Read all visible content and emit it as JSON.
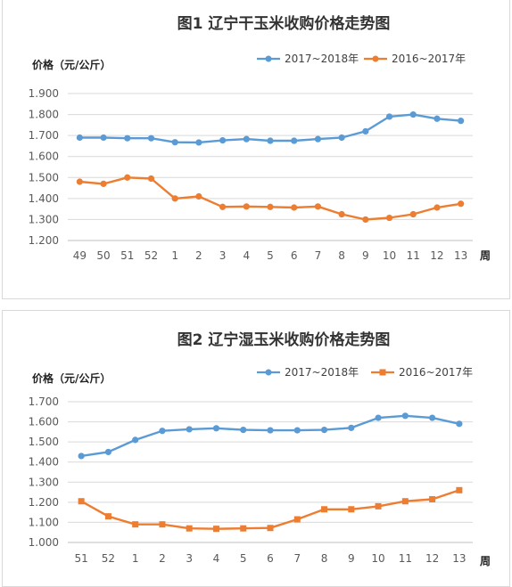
{
  "chart_data": [
    {
      "type": "line",
      "title": "图1 辽宁干玉米收购价格走势图",
      "ylabel": "价格（元/公斤）",
      "xlabel": "周",
      "categories": [
        "49",
        "50",
        "51",
        "52",
        "1",
        "2",
        "3",
        "4",
        "5",
        "6",
        "7",
        "8",
        "9",
        "10",
        "11",
        "12",
        "13"
      ],
      "ylim": [
        1.2,
        1.9
      ],
      "yticks": [
        "1.200",
        "1.300",
        "1.400",
        "1.500",
        "1.600",
        "1.700",
        "1.800",
        "1.900"
      ],
      "grid": true,
      "legend_position": "top-right",
      "series": [
        {
          "name": "2017~2018年",
          "color": "#5b9bd5",
          "marker": "circle",
          "values": [
            1.69,
            1.69,
            1.687,
            1.687,
            1.668,
            1.667,
            1.677,
            1.683,
            1.675,
            1.675,
            1.683,
            1.69,
            1.72,
            1.79,
            1.8,
            1.78,
            1.77
          ]
        },
        {
          "name": "2016~2017年",
          "color": "#ed7d31",
          "marker": "circle",
          "values": [
            1.48,
            1.47,
            1.5,
            1.495,
            1.4,
            1.41,
            1.36,
            1.362,
            1.36,
            1.357,
            1.362,
            1.325,
            1.3,
            1.308,
            1.325,
            1.357,
            1.375
          ]
        }
      ]
    },
    {
      "type": "line",
      "title": "图2 辽宁湿玉米收购价格走势图",
      "ylabel": "价格（元/公斤）",
      "xlabel": "周",
      "categories": [
        "51",
        "52",
        "1",
        "2",
        "3",
        "4",
        "5",
        "6",
        "7",
        "8",
        "9",
        "10",
        "11",
        "12",
        "13"
      ],
      "ylim": [
        1.0,
        1.7
      ],
      "yticks": [
        "1.000",
        "1.100",
        "1.200",
        "1.300",
        "1.400",
        "1.500",
        "1.600",
        "1.700"
      ],
      "grid": true,
      "legend_position": "top-right",
      "series": [
        {
          "name": "2017~2018年",
          "color": "#5b9bd5",
          "marker": "circle",
          "values": [
            1.43,
            1.45,
            1.51,
            1.555,
            1.563,
            1.568,
            1.56,
            1.558,
            1.558,
            1.56,
            1.57,
            1.62,
            1.63,
            1.62,
            1.59
          ]
        },
        {
          "name": "2016~2017年",
          "color": "#ed7d31",
          "marker": "square",
          "values": [
            1.205,
            1.13,
            1.09,
            1.09,
            1.07,
            1.068,
            1.07,
            1.072,
            1.115,
            1.165,
            1.165,
            1.18,
            1.205,
            1.215,
            1.26
          ]
        }
      ]
    }
  ]
}
